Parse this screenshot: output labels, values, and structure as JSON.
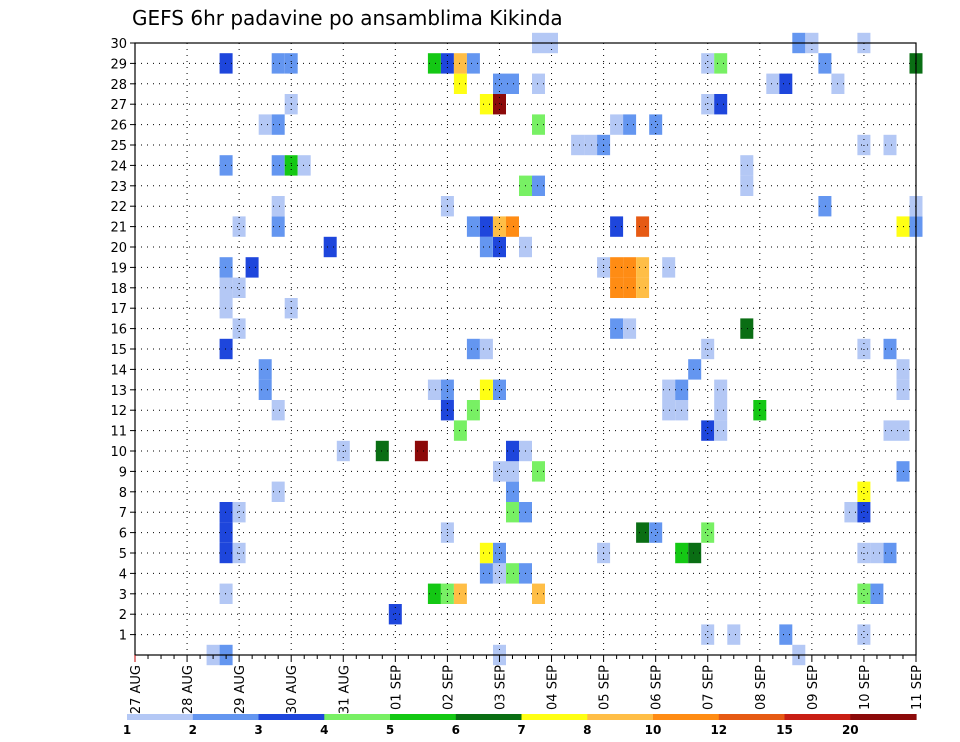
{
  "title": "GEFS 6hr padavine po ansamblima Kikinda",
  "chart_data": {
    "type": "heatmap",
    "title": "GEFS 6hr padavine po ansamblima Kikinda",
    "xlabel": "",
    "ylabel": "",
    "x_ticks": [
      "27 AUG",
      "28 AUG",
      "29 AUG",
      "30 AUG",
      "31 AUG",
      "01 SEP",
      "02 SEP",
      "03 SEP",
      "04 SEP",
      "05 SEP",
      "06 SEP",
      "07 SEP",
      "08 SEP",
      "09 SEP",
      "10 SEP",
      "11 SEP"
    ],
    "y_ticks": [
      "1",
      "2",
      "3",
      "4",
      "5",
      "6",
      "7",
      "8",
      "9",
      "10",
      "11",
      "12",
      "13",
      "14",
      "15",
      "16",
      "17",
      "18",
      "19",
      "20",
      "21",
      "22",
      "23",
      "24",
      "25",
      "26",
      "27",
      "28",
      "29",
      "30"
    ],
    "xlim_days": [
      0,
      15
    ],
    "ylim_members": [
      0,
      30
    ],
    "time_step_days": 0.25,
    "grid": true,
    "colorbar": {
      "labels": [
        "1",
        "2",
        "3",
        "4",
        "5",
        "6",
        "7",
        "8",
        "10",
        "12",
        "15",
        "20"
      ],
      "colors": [
        "#b4c8f5",
        "#6496f0",
        "#1e46dc",
        "#78f064",
        "#14c814",
        "#0a6e14",
        "#ffff14",
        "#ffbe46",
        "#ff8c14",
        "#e65a14",
        "#c81e14",
        "#8c0a0a"
      ]
    },
    "cells": [
      {
        "t": 1.5,
        "m": 0,
        "v": 1.5
      },
      {
        "t": 1.75,
        "m": 0,
        "v": 2.5
      },
      {
        "t": 7.0,
        "m": 0,
        "v": 1.5
      },
      {
        "t": 12.75,
        "m": 0,
        "v": 1.5
      },
      {
        "t": 11.0,
        "m": 1,
        "v": 1.5
      },
      {
        "t": 11.5,
        "m": 1,
        "v": 1.5
      },
      {
        "t": 12.5,
        "m": 1,
        "v": 2.5
      },
      {
        "t": 14.0,
        "m": 1,
        "v": 1.5
      },
      {
        "t": 5.0,
        "m": 2,
        "v": 3.5
      },
      {
        "t": 1.75,
        "m": 3,
        "v": 1.5
      },
      {
        "t": 5.75,
        "m": 3,
        "v": 5.5
      },
      {
        "t": 6.0,
        "m": 3,
        "v": 4.5
      },
      {
        "t": 6.25,
        "m": 3,
        "v": 9
      },
      {
        "t": 7.75,
        "m": 3,
        "v": 9
      },
      {
        "t": 14.0,
        "m": 3,
        "v": 4.5
      },
      {
        "t": 14.25,
        "m": 3,
        "v": 2.5
      },
      {
        "t": 6.75,
        "m": 4,
        "v": 2.5
      },
      {
        "t": 7.0,
        "m": 4,
        "v": 1.5
      },
      {
        "t": 7.25,
        "m": 4,
        "v": 4.5
      },
      {
        "t": 7.5,
        "m": 4,
        "v": 2.5
      },
      {
        "t": 1.75,
        "m": 5,
        "v": 3.5
      },
      {
        "t": 2.0,
        "m": 5,
        "v": 1.5
      },
      {
        "t": 6.75,
        "m": 5,
        "v": 7.5
      },
      {
        "t": 7.0,
        "m": 5,
        "v": 2.5
      },
      {
        "t": 9.0,
        "m": 5,
        "v": 1.5
      },
      {
        "t": 10.5,
        "m": 5,
        "v": 5.5
      },
      {
        "t": 10.75,
        "m": 5,
        "v": 6.5
      },
      {
        "t": 14.0,
        "m": 5,
        "v": 1.5
      },
      {
        "t": 14.25,
        "m": 5,
        "v": 1.5
      },
      {
        "t": 14.5,
        "m": 5,
        "v": 2.5
      },
      {
        "t": 1.75,
        "m": 6,
        "v": 3.5
      },
      {
        "t": 6.0,
        "m": 6,
        "v": 1.5
      },
      {
        "t": 9.75,
        "m": 6,
        "v": 6.5
      },
      {
        "t": 10.0,
        "m": 6,
        "v": 2.5
      },
      {
        "t": 11.0,
        "m": 6,
        "v": 4.5
      },
      {
        "t": 1.75,
        "m": 7,
        "v": 3.5
      },
      {
        "t": 2.0,
        "m": 7,
        "v": 1.5
      },
      {
        "t": 7.25,
        "m": 7,
        "v": 4.5
      },
      {
        "t": 7.5,
        "m": 7,
        "v": 2.5
      },
      {
        "t": 13.75,
        "m": 7,
        "v": 1.5
      },
      {
        "t": 14.0,
        "m": 7,
        "v": 3.5
      },
      {
        "t": 2.75,
        "m": 8,
        "v": 1.5
      },
      {
        "t": 7.25,
        "m": 8,
        "v": 2.5
      },
      {
        "t": 14.0,
        "m": 8,
        "v": 7.5
      },
      {
        "t": 7.0,
        "m": 9,
        "v": 1.5
      },
      {
        "t": 7.25,
        "m": 9,
        "v": 1.5
      },
      {
        "t": 7.75,
        "m": 9,
        "v": 4.5
      },
      {
        "t": 14.75,
        "m": 9,
        "v": 2.5
      },
      {
        "t": 4.0,
        "m": 10,
        "v": 1.5
      },
      {
        "t": 4.75,
        "m": 10,
        "v": 6.5
      },
      {
        "t": 5.5,
        "m": 10,
        "v": 25
      },
      {
        "t": 7.25,
        "m": 10,
        "v": 3.5
      },
      {
        "t": 7.5,
        "m": 10,
        "v": 1.5
      },
      {
        "t": 6.25,
        "m": 11,
        "v": 4.5
      },
      {
        "t": 11.0,
        "m": 11,
        "v": 3.5
      },
      {
        "t": 11.25,
        "m": 11,
        "v": 1.5
      },
      {
        "t": 14.5,
        "m": 11,
        "v": 1.5
      },
      {
        "t": 14.75,
        "m": 11,
        "v": 1.5
      },
      {
        "t": 2.75,
        "m": 12,
        "v": 1.5
      },
      {
        "t": 6.0,
        "m": 12,
        "v": 3.5
      },
      {
        "t": 6.5,
        "m": 12,
        "v": 4.5
      },
      {
        "t": 10.25,
        "m": 12,
        "v": 1.5
      },
      {
        "t": 10.5,
        "m": 12,
        "v": 1.5
      },
      {
        "t": 11.25,
        "m": 12,
        "v": 1.5
      },
      {
        "t": 12.0,
        "m": 12,
        "v": 5.5
      },
      {
        "t": 2.5,
        "m": 13,
        "v": 2.5
      },
      {
        "t": 5.75,
        "m": 13,
        "v": 1.5
      },
      {
        "t": 6.0,
        "m": 13,
        "v": 2.5
      },
      {
        "t": 6.75,
        "m": 13,
        "v": 7.5
      },
      {
        "t": 7.0,
        "m": 13,
        "v": 2.5
      },
      {
        "t": 10.25,
        "m": 13,
        "v": 1.5
      },
      {
        "t": 10.5,
        "m": 13,
        "v": 2.5
      },
      {
        "t": 11.25,
        "m": 13,
        "v": 1.5
      },
      {
        "t": 14.75,
        "m": 13,
        "v": 1.5
      },
      {
        "t": 2.5,
        "m": 14,
        "v": 2.5
      },
      {
        "t": 10.75,
        "m": 14,
        "v": 2.5
      },
      {
        "t": 14.75,
        "m": 14,
        "v": 1.5
      },
      {
        "t": 1.75,
        "m": 15,
        "v": 3.5
      },
      {
        "t": 6.5,
        "m": 15,
        "v": 2.5
      },
      {
        "t": 6.75,
        "m": 15,
        "v": 1.5
      },
      {
        "t": 11.0,
        "m": 15,
        "v": 1.5
      },
      {
        "t": 14.0,
        "m": 15,
        "v": 1.5
      },
      {
        "t": 14.5,
        "m": 15,
        "v": 2.5
      },
      {
        "t": 11.75,
        "m": 16,
        "v": 6.5
      },
      {
        "t": 2.0,
        "m": 16,
        "v": 1.5
      },
      {
        "t": 9.25,
        "m": 16,
        "v": 2.5
      },
      {
        "t": 9.5,
        "m": 16,
        "v": 1.5
      },
      {
        "t": 3.0,
        "m": 17,
        "v": 1.5
      },
      {
        "t": 1.75,
        "m": 17,
        "v": 1.5
      },
      {
        "t": 1.75,
        "m": 18,
        "v": 1.5
      },
      {
        "t": 2.0,
        "m": 18,
        "v": 1.5
      },
      {
        "t": 1.75,
        "m": 19,
        "v": 2.5
      },
      {
        "t": 2.25,
        "m": 19,
        "v": 3.5
      },
      {
        "t": 9.0,
        "m": 19,
        "v": 1.5
      },
      {
        "t": 9.25,
        "m": 18,
        "v": 11
      },
      {
        "t": 9.25,
        "m": 19,
        "v": 11
      },
      {
        "t": 9.5,
        "m": 18,
        "v": 11
      },
      {
        "t": 9.5,
        "m": 19,
        "v": 11
      },
      {
        "t": 9.75,
        "m": 18,
        "v": 9
      },
      {
        "t": 9.75,
        "m": 19,
        "v": 9
      },
      {
        "t": 10.25,
        "m": 19,
        "v": 1.5
      },
      {
        "t": 3.75,
        "m": 20,
        "v": 3.5
      },
      {
        "t": 6.75,
        "m": 20,
        "v": 2.5
      },
      {
        "t": 7.0,
        "m": 20,
        "v": 3.5
      },
      {
        "t": 7.5,
        "m": 20,
        "v": 1.5
      },
      {
        "t": 2.0,
        "m": 21,
        "v": 1.5
      },
      {
        "t": 2.75,
        "m": 21,
        "v": 2.5
      },
      {
        "t": 6.5,
        "m": 21,
        "v": 2.5
      },
      {
        "t": 6.75,
        "m": 21,
        "v": 3.5
      },
      {
        "t": 7.0,
        "m": 21,
        "v": 9
      },
      {
        "t": 7.25,
        "m": 21,
        "v": 11
      },
      {
        "t": 9.25,
        "m": 21,
        "v": 3.5
      },
      {
        "t": 9.75,
        "m": 21,
        "v": 14
      },
      {
        "t": 14.75,
        "m": 21,
        "v": 7.5
      },
      {
        "t": 15.0,
        "m": 21,
        "v": 2.5
      },
      {
        "t": 2.75,
        "m": 22,
        "v": 1.5
      },
      {
        "t": 6.0,
        "m": 22,
        "v": 1.5
      },
      {
        "t": 13.25,
        "m": 22,
        "v": 2.5
      },
      {
        "t": 15.0,
        "m": 22,
        "v": 1.5
      },
      {
        "t": 7.5,
        "m": 23,
        "v": 4.5
      },
      {
        "t": 7.75,
        "m": 23,
        "v": 2.5
      },
      {
        "t": 11.75,
        "m": 23,
        "v": 1.5
      },
      {
        "t": 1.75,
        "m": 24,
        "v": 2.5
      },
      {
        "t": 2.75,
        "m": 24,
        "v": 2.5
      },
      {
        "t": 3.0,
        "m": 24,
        "v": 5.5
      },
      {
        "t": 3.25,
        "m": 24,
        "v": 1.5
      },
      {
        "t": 11.75,
        "m": 24,
        "v": 1.5
      },
      {
        "t": 8.5,
        "m": 25,
        "v": 1.5
      },
      {
        "t": 8.75,
        "m": 25,
        "v": 1.5
      },
      {
        "t": 9.0,
        "m": 25,
        "v": 2.5
      },
      {
        "t": 14.0,
        "m": 25,
        "v": 1.5
      },
      {
        "t": 14.5,
        "m": 25,
        "v": 1.5
      },
      {
        "t": 2.5,
        "m": 26,
        "v": 1.5
      },
      {
        "t": 2.75,
        "m": 26,
        "v": 2.5
      },
      {
        "t": 7.75,
        "m": 26,
        "v": 4.5
      },
      {
        "t": 9.25,
        "m": 26,
        "v": 1.5
      },
      {
        "t": 9.5,
        "m": 26,
        "v": 2.5
      },
      {
        "t": 10.0,
        "m": 26,
        "v": 2.5
      },
      {
        "t": 3.0,
        "m": 27,
        "v": 1.5
      },
      {
        "t": 6.75,
        "m": 27,
        "v": 7.5
      },
      {
        "t": 7.0,
        "m": 27,
        "v": 25
      },
      {
        "t": 11.0,
        "m": 27,
        "v": 1.5
      },
      {
        "t": 11.25,
        "m": 27,
        "v": 3.5
      },
      {
        "t": 6.25,
        "m": 28,
        "v": 7.5
      },
      {
        "t": 7.0,
        "m": 28,
        "v": 2.5
      },
      {
        "t": 7.25,
        "m": 28,
        "v": 2.5
      },
      {
        "t": 7.75,
        "m": 28,
        "v": 1.5
      },
      {
        "t": 12.25,
        "m": 28,
        "v": 1.5
      },
      {
        "t": 12.5,
        "m": 28,
        "v": 3.5
      },
      {
        "t": 13.5,
        "m": 28,
        "v": 1.5
      },
      {
        "t": 1.75,
        "m": 29,
        "v": 3.5
      },
      {
        "t": 2.75,
        "m": 29,
        "v": 2.5
      },
      {
        "t": 3.0,
        "m": 29,
        "v": 2.5
      },
      {
        "t": 5.75,
        "m": 29,
        "v": 5.5
      },
      {
        "t": 6.0,
        "m": 29,
        "v": 3.5
      },
      {
        "t": 6.25,
        "m": 29,
        "v": 9
      },
      {
        "t": 6.5,
        "m": 29,
        "v": 2.5
      },
      {
        "t": 11.0,
        "m": 29,
        "v": 1.5
      },
      {
        "t": 11.25,
        "m": 29,
        "v": 4.5
      },
      {
        "t": 13.25,
        "m": 29,
        "v": 2.5
      },
      {
        "t": 15.0,
        "m": 29,
        "v": 6.5
      },
      {
        "t": 7.75,
        "m": 30,
        "v": 1.5
      },
      {
        "t": 8.0,
        "m": 30,
        "v": 1.5
      },
      {
        "t": 12.75,
        "m": 30,
        "v": 2.5
      },
      {
        "t": 13.0,
        "m": 30,
        "v": 1.5
      },
      {
        "t": 14.0,
        "m": 30,
        "v": 1.5
      }
    ]
  }
}
